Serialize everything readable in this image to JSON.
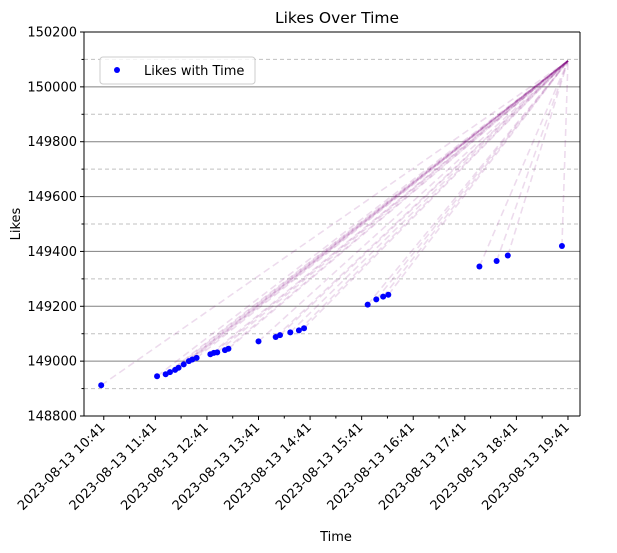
{
  "chart_data": {
    "type": "scatter",
    "title": "Likes Over Time",
    "xlabel": "Time",
    "ylabel": "Likes",
    "xlim": [
      "2023-08-13 10:18",
      "2023-08-13 19:55"
    ],
    "ylim": [
      148800,
      150200
    ],
    "x_ticks": [
      "2023-08-13 10:41",
      "2023-08-13 11:41",
      "2023-08-13 12:41",
      "2023-08-13 13:41",
      "2023-08-13 14:41",
      "2023-08-13 15:41",
      "2023-08-13 16:41",
      "2023-08-13 17:41",
      "2023-08-13 18:41",
      "2023-08-13 19:41"
    ],
    "y_ticks": [
      148800,
      149000,
      149200,
      149400,
      149600,
      149800,
      150000,
      150200
    ],
    "grid": {
      "major": "solid gray",
      "minor": "dashed gray",
      "axis": "y"
    },
    "legend": {
      "placement": "top-left",
      "entries": [
        "Likes with Time"
      ]
    },
    "colors": {
      "points": "#0000ff",
      "lines": "#800080",
      "grid_major": "#808080",
      "grid_minor": "#c0c0c0"
    },
    "series": [
      {
        "name": "Likes with Time",
        "points": [
          {
            "x": "2023-08-13 10:38",
            "y": 148912
          },
          {
            "x": "2023-08-13 11:43",
            "y": 148945
          },
          {
            "x": "2023-08-13 11:53",
            "y": 148952
          },
          {
            "x": "2023-08-13 11:58",
            "y": 148960
          },
          {
            "x": "2023-08-13 12:04",
            "y": 148968
          },
          {
            "x": "2023-08-13 12:08",
            "y": 148976
          },
          {
            "x": "2023-08-13 12:14",
            "y": 148988
          },
          {
            "x": "2023-08-13 12:20",
            "y": 149000
          },
          {
            "x": "2023-08-13 12:24",
            "y": 149006
          },
          {
            "x": "2023-08-13 12:29",
            "y": 149012
          },
          {
            "x": "2023-08-13 12:45",
            "y": 149025
          },
          {
            "x": "2023-08-13 12:49",
            "y": 149030
          },
          {
            "x": "2023-08-13 12:53",
            "y": 149032
          },
          {
            "x": "2023-08-13 13:02",
            "y": 149040
          },
          {
            "x": "2023-08-13 13:06",
            "y": 149045
          },
          {
            "x": "2023-08-13 13:41",
            "y": 149072
          },
          {
            "x": "2023-08-13 14:01",
            "y": 149088
          },
          {
            "x": "2023-08-13 14:06",
            "y": 149095
          },
          {
            "x": "2023-08-13 14:18",
            "y": 149105
          },
          {
            "x": "2023-08-13 14:28",
            "y": 149112
          },
          {
            "x": "2023-08-13 14:34",
            "y": 149120
          },
          {
            "x": "2023-08-13 15:48",
            "y": 149206
          },
          {
            "x": "2023-08-13 15:58",
            "y": 149225
          },
          {
            "x": "2023-08-13 16:06",
            "y": 149235
          },
          {
            "x": "2023-08-13 16:12",
            "y": 149242
          },
          {
            "x": "2023-08-13 17:58",
            "y": 149345
          },
          {
            "x": "2023-08-13 18:18",
            "y": 149365
          },
          {
            "x": "2023-08-13 18:31",
            "y": 149385
          },
          {
            "x": "2023-08-13 19:34",
            "y": 149420
          }
        ]
      }
    ],
    "connector_target": {
      "x": "2023-08-13 19:41",
      "y": 150095
    }
  }
}
